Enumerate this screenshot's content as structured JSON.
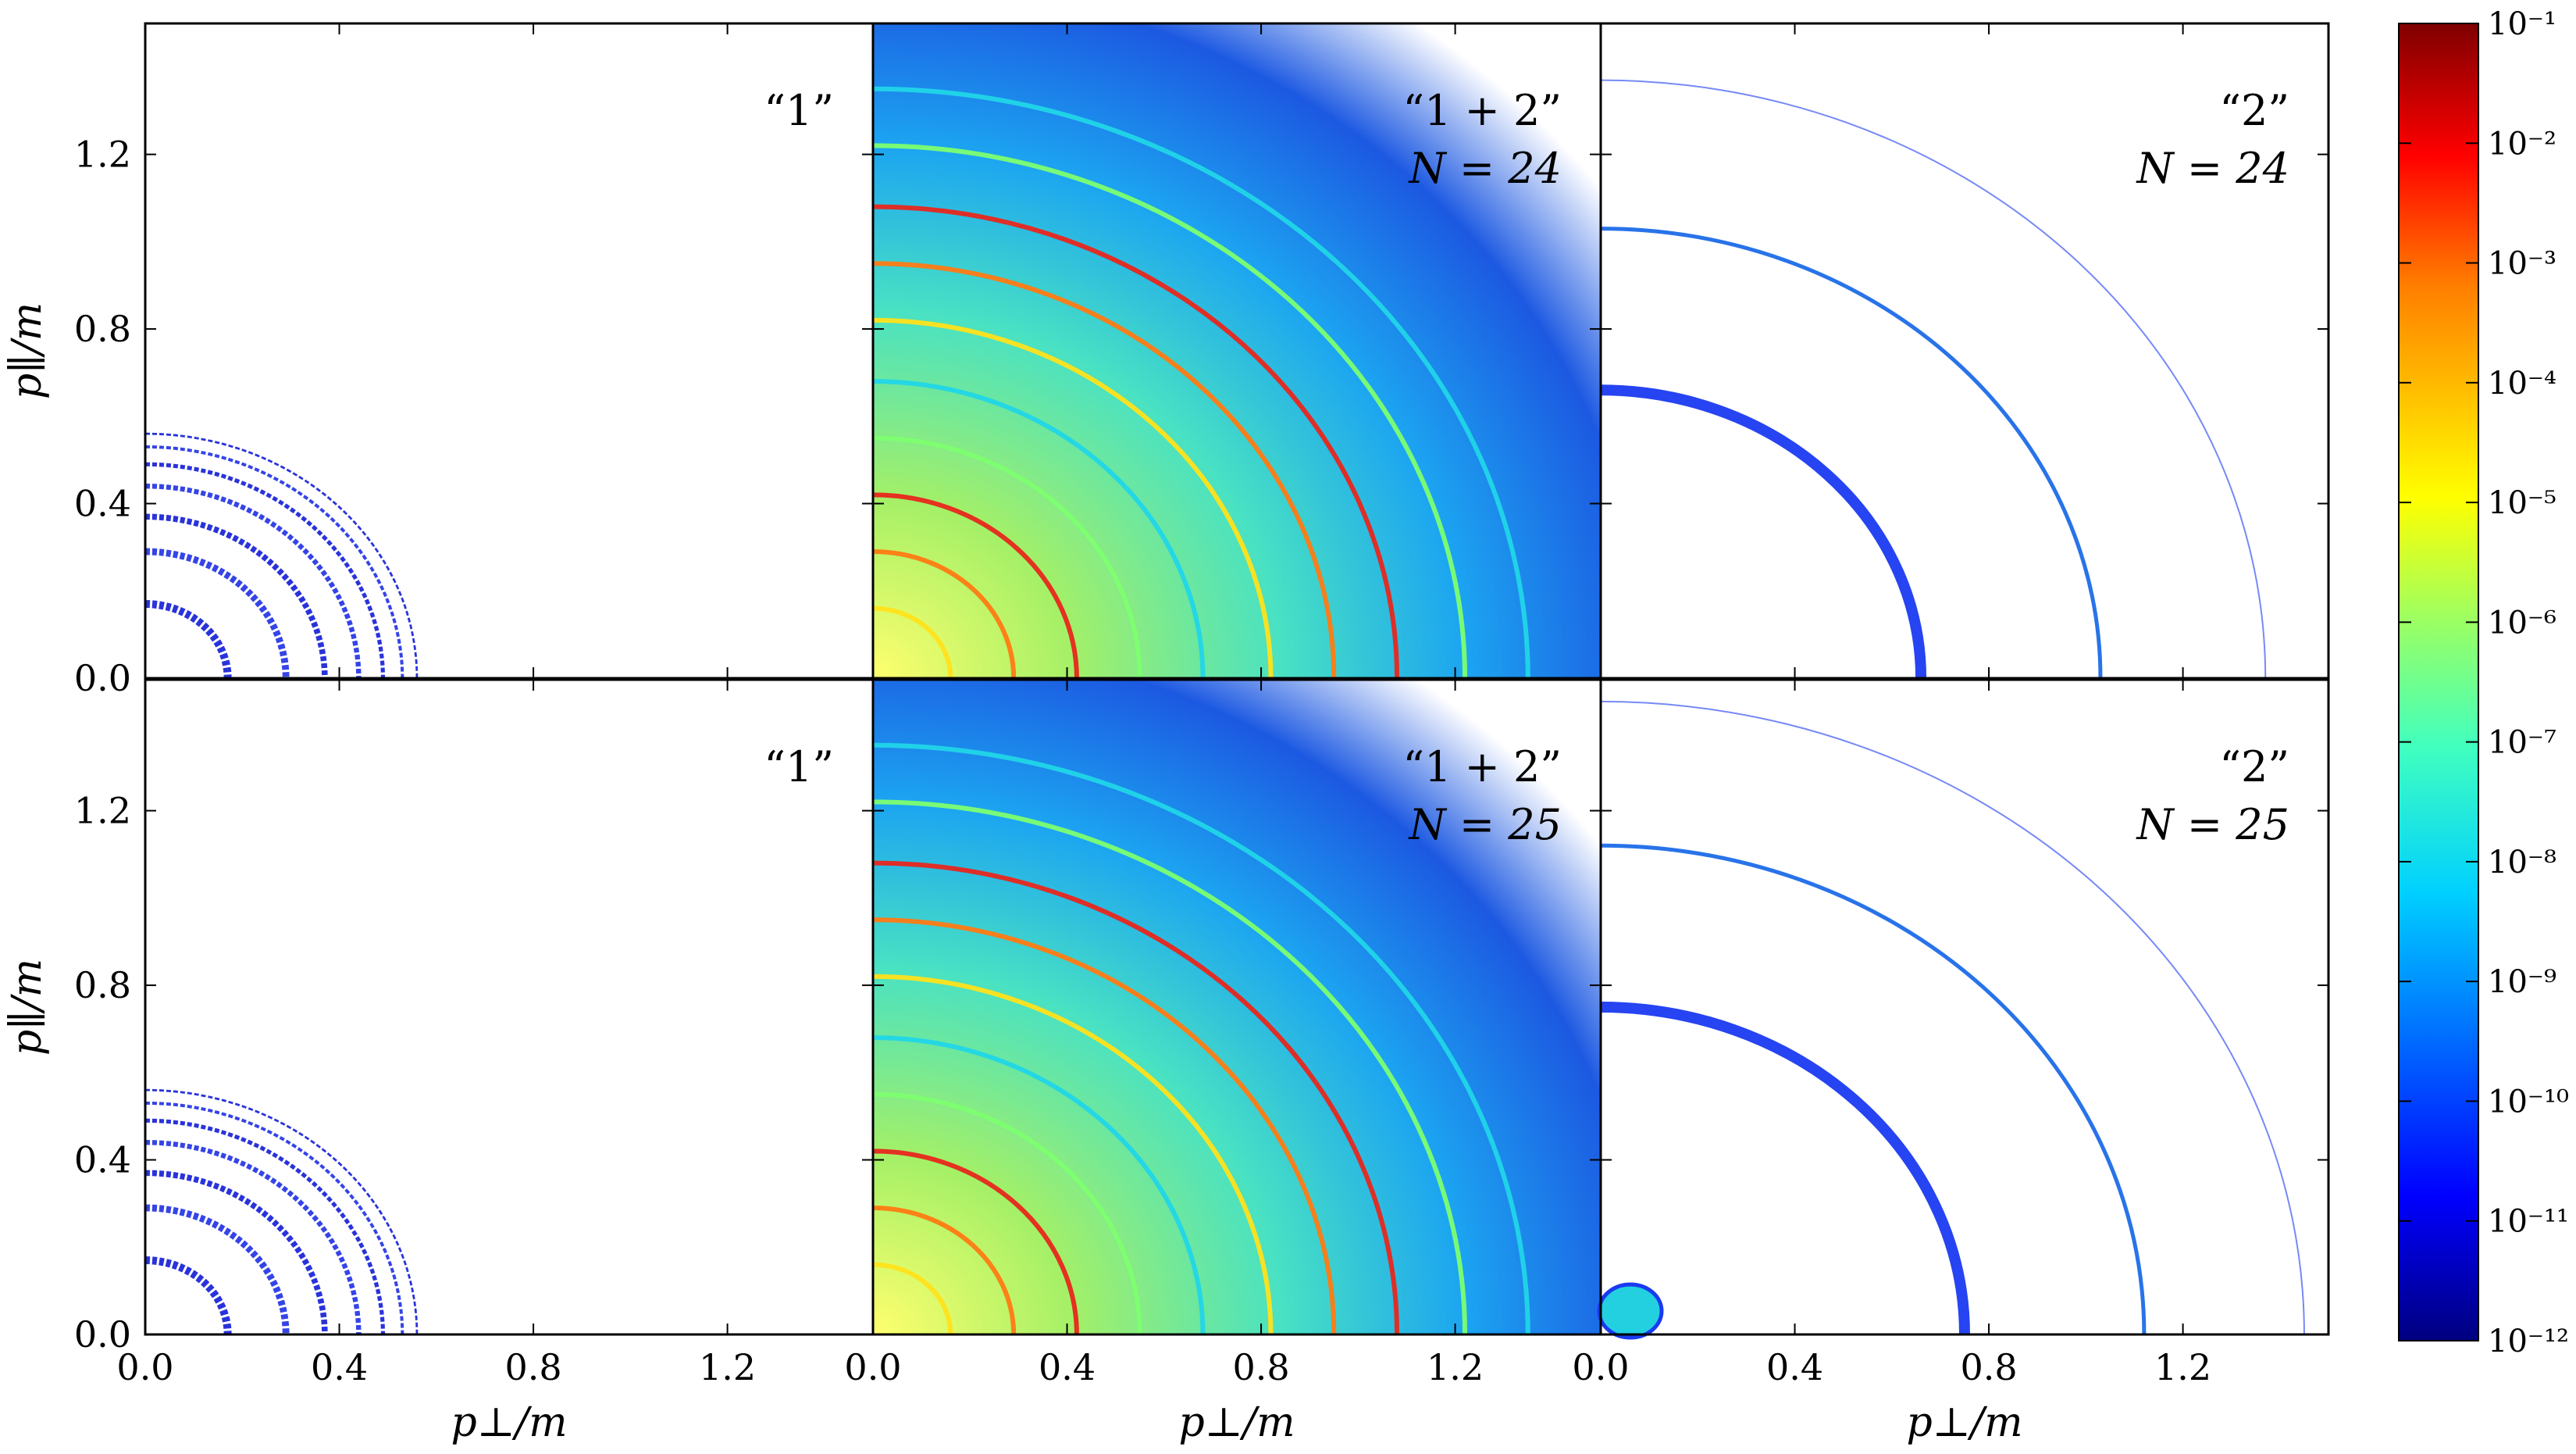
{
  "colorbar": {
    "tick_labels": [
      "10⁻¹",
      "10⁻²",
      "10⁻³",
      "10⁻⁴",
      "10⁻⁵",
      "10⁻⁶",
      "10⁻⁷",
      "10⁻⁸",
      "10⁻⁹",
      "10⁻¹⁰",
      "10⁻¹¹",
      "10⁻¹²"
    ],
    "exponents": [
      -1,
      -2,
      -3,
      -4,
      -5,
      -6,
      -7,
      -8,
      -9,
      -10,
      -11,
      -12
    ],
    "scale": "log",
    "range": [
      1e-12,
      0.1
    ],
    "colormap": [
      "#00007f",
      "#0000ff",
      "#007fff",
      "#00ffff",
      "#7fff7f",
      "#ffff00",
      "#ff7f00",
      "#ff0000",
      "#7f0000"
    ]
  },
  "chart_data": [
    {
      "type": "heatmap",
      "panel": "row1-col1",
      "label": "“1”",
      "n_label": "",
      "xlabel": "",
      "ylabel": "p∥/m",
      "xlim": [
        0,
        1.5
      ],
      "ylim": [
        0,
        1.5
      ],
      "x_ticks": [],
      "y_ticks": [
        "0.0",
        "0.4",
        "0.8",
        "1.2"
      ],
      "rings": {
        "radii": [
          0.17,
          0.29,
          0.37,
          0.44,
          0.49,
          0.53,
          0.56
        ],
        "max_angle_deg": 90,
        "intensity": "1e-11"
      }
    },
    {
      "type": "heatmap",
      "panel": "row1-col2",
      "label": "“1 + 2”",
      "n_label": "N = 24",
      "xlabel": "",
      "ylabel": "",
      "xlim": [
        0,
        1.5
      ],
      "ylim": [
        0,
        1.5
      ],
      "x_ticks": [],
      "y_ticks": [],
      "rings": {
        "radii": [
          0.16,
          0.29,
          0.42,
          0.55,
          0.68,
          0.82,
          0.95,
          1.08,
          1.22,
          1.35
        ],
        "max_angle_deg": 90,
        "intensity": "1e-8 to 1e-4"
      }
    },
    {
      "type": "heatmap",
      "panel": "row1-col3",
      "label": "“2”",
      "n_label": "N = 24",
      "xlabel": "",
      "ylabel": "",
      "xlim": [
        0,
        1.5
      ],
      "ylim": [
        0,
        1.5
      ],
      "x_ticks": [],
      "y_ticks": [],
      "rings": {
        "radii": [
          0.66,
          1.03,
          1.37
        ],
        "max_angle_deg": 90,
        "intensity": "1e-10"
      }
    },
    {
      "type": "heatmap",
      "panel": "row2-col1",
      "label": "“1”",
      "n_label": "",
      "xlabel": "p⊥/m",
      "ylabel": "p∥/m",
      "xlim": [
        0,
        1.5
      ],
      "ylim": [
        0,
        1.5
      ],
      "x_ticks": [
        "0.0",
        "0.4",
        "0.8",
        "1.2"
      ],
      "y_ticks": [
        "0.0",
        "0.4",
        "0.8",
        "1.2"
      ],
      "rings": {
        "radii": [
          0.17,
          0.29,
          0.37,
          0.44,
          0.49,
          0.53,
          0.56
        ],
        "max_angle_deg": 90,
        "intensity": "1e-11"
      }
    },
    {
      "type": "heatmap",
      "panel": "row2-col2",
      "label": "“1 + 2”",
      "n_label": "N = 25",
      "xlabel": "p⊥/m",
      "ylabel": "",
      "xlim": [
        0,
        1.5
      ],
      "ylim": [
        0,
        1.5
      ],
      "x_ticks": [
        "0.0",
        "0.4",
        "0.8",
        "1.2"
      ],
      "y_ticks": [],
      "rings": {
        "radii": [
          0.16,
          0.29,
          0.42,
          0.55,
          0.68,
          0.82,
          0.95,
          1.08,
          1.22,
          1.35
        ],
        "max_angle_deg": 90,
        "intensity": "1e-8 to 1e-4"
      }
    },
    {
      "type": "heatmap",
      "panel": "row2-col3",
      "label": "“2”",
      "n_label": "N = 25",
      "xlabel": "p⊥/m",
      "ylabel": "",
      "xlim": [
        0,
        1.5
      ],
      "ylim": [
        0,
        1.5
      ],
      "x_ticks": [
        "0.0",
        "0.4",
        "0.8",
        "1.2"
      ],
      "y_ticks": [],
      "rings": {
        "radii": [
          0.75,
          1.12,
          1.45
        ],
        "max_angle_deg": 90,
        "intensity": "1e-10"
      }
    }
  ]
}
